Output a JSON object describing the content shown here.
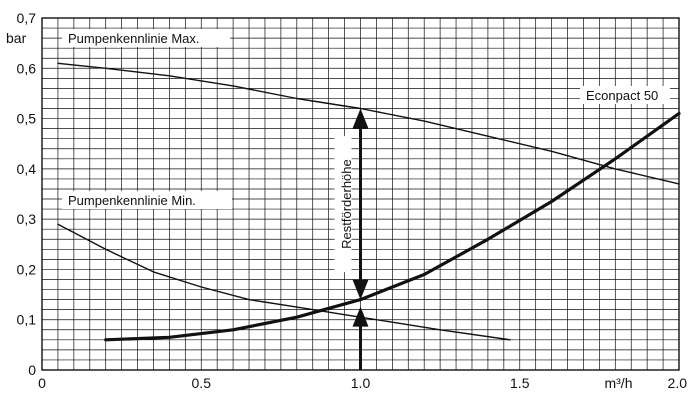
{
  "chart_data": {
    "type": "line",
    "title": "",
    "xlabel": "",
    "ylabel": "bar",
    "x_unit_label": "m³/h",
    "xlim": [
      0,
      2.0
    ],
    "ylim": [
      0,
      0.7
    ],
    "grid": true,
    "x_ticks": [
      {
        "value": 0,
        "label": "0"
      },
      {
        "value": 0.5,
        "label": "0.5"
      },
      {
        "value": 1.0,
        "label": "1.0"
      },
      {
        "value": 1.5,
        "label": "1.5"
      },
      {
        "value": 2.0,
        "label": "2.0"
      }
    ],
    "y_ticks": [
      {
        "value": 0,
        "label": "0"
      },
      {
        "value": 0.1,
        "label": "0,1"
      },
      {
        "value": 0.2,
        "label": "0,2"
      },
      {
        "value": 0.3,
        "label": "0,3"
      },
      {
        "value": 0.4,
        "label": "0,4"
      },
      {
        "value": 0.5,
        "label": "0,5"
      },
      {
        "value": 0.6,
        "label": "0,6"
      },
      {
        "value": 0.7,
        "label": "0,7"
      }
    ],
    "series": [
      {
        "name": "Pumpenkennlinie Max.",
        "style": "thin",
        "x": [
          0.05,
          0.2,
          0.4,
          0.6,
          0.8,
          1.0,
          1.2,
          1.4,
          1.6,
          1.8,
          2.0
        ],
        "y": [
          0.61,
          0.6,
          0.585,
          0.565,
          0.54,
          0.52,
          0.495,
          0.465,
          0.435,
          0.4,
          0.37
        ]
      },
      {
        "name": "Pumpenkennlinie Min.",
        "style": "thin",
        "x": [
          0.05,
          0.2,
          0.35,
          0.5,
          0.65,
          0.8,
          0.95,
          1.1,
          1.25,
          1.47
        ],
        "y": [
          0.29,
          0.24,
          0.195,
          0.165,
          0.14,
          0.125,
          0.11,
          0.095,
          0.08,
          0.06
        ]
      },
      {
        "name": "Econpact 50",
        "style": "thick",
        "x": [
          0.2,
          0.4,
          0.6,
          0.8,
          1.0,
          1.2,
          1.4,
          1.6,
          1.8,
          2.0
        ],
        "y": [
          0.06,
          0.065,
          0.08,
          0.105,
          0.14,
          0.19,
          0.26,
          0.335,
          0.42,
          0.51
        ]
      }
    ],
    "annotation": {
      "label": "Restförderhöhe",
      "x": 1.0,
      "y_bottom": 0.0,
      "y_low": 0.14,
      "y_high": 0.52
    }
  }
}
